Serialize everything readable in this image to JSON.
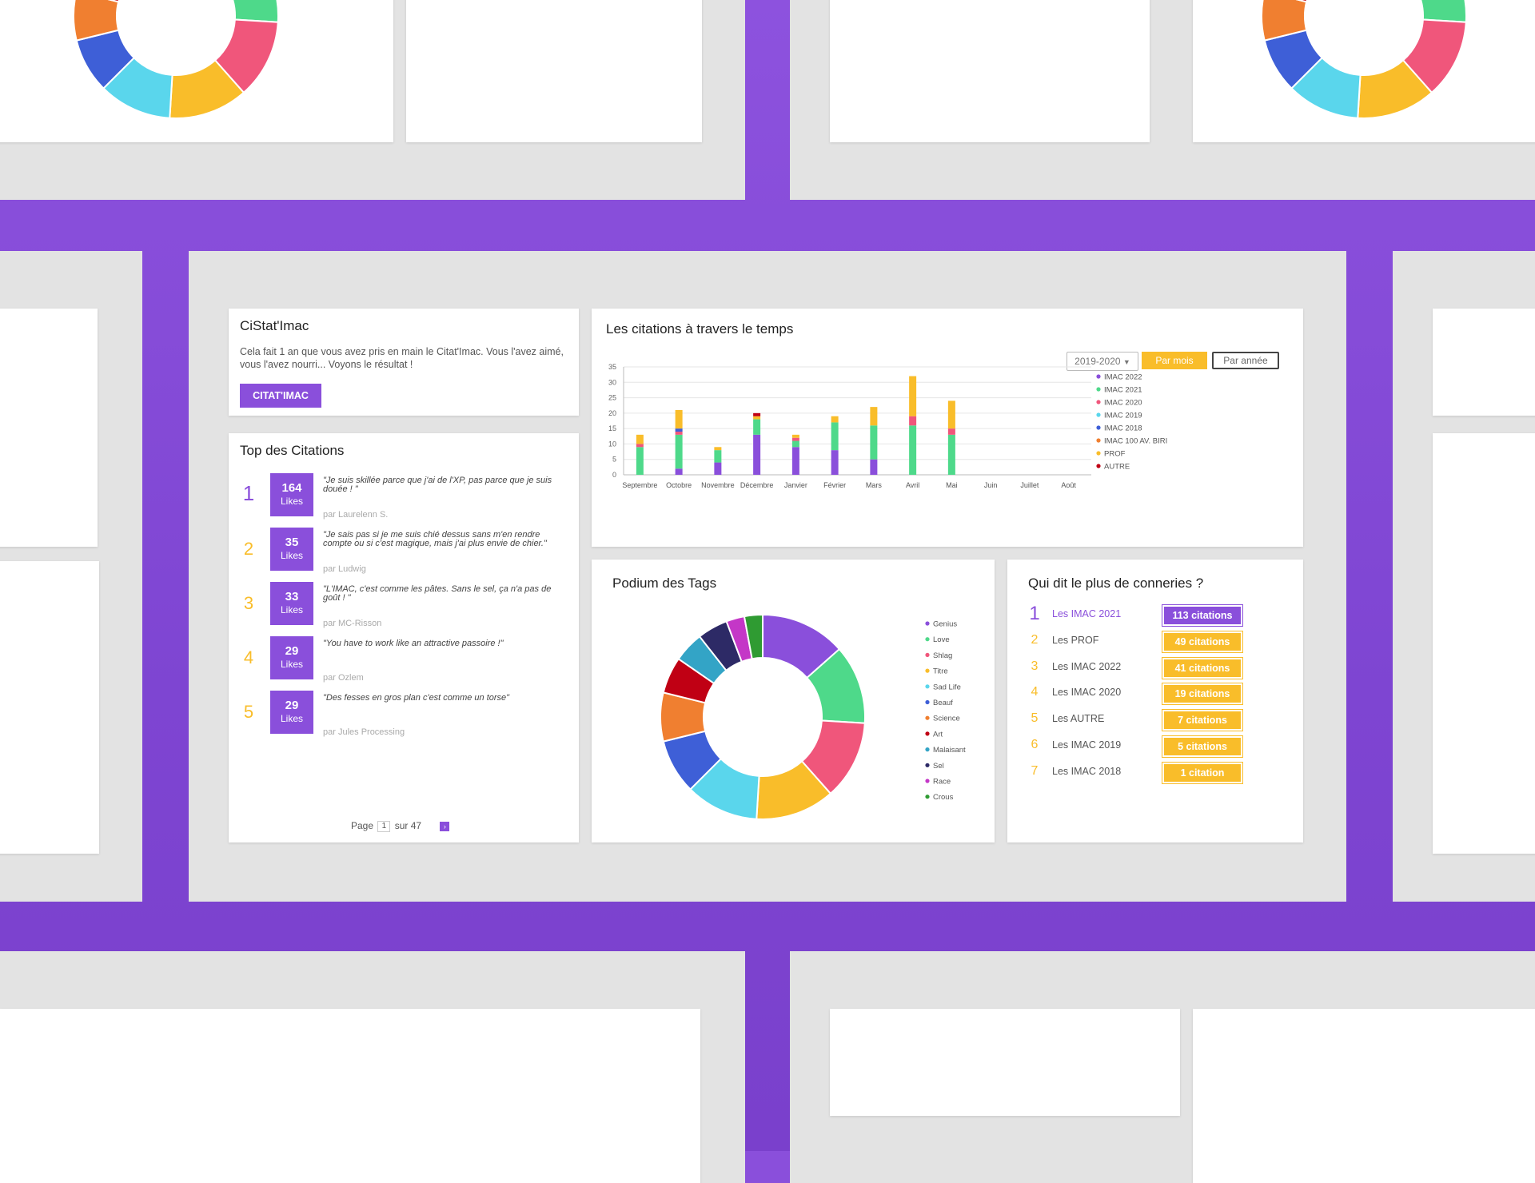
{
  "colors": {
    "purple": "#8a4fdb",
    "yellow": "#f9bd2a",
    "frame": "#e3e3e3"
  },
  "intro": {
    "title": "CiStat'Imac",
    "text": "Cela fait 1 an que vous avez pris en main le Citat'Imac. Vous l'avez aimé, vous l'avez nourri... Voyons le résultat !",
    "button": "CITAT'IMAC"
  },
  "quotes": {
    "title": "Top des Citations",
    "likes_label": "Likes",
    "items": [
      {
        "rank": "1",
        "likes": "164",
        "text": "\"Je suis skillée parce que j'ai de l'XP, pas parce que je suis douée ! \"",
        "author": "par Laurelenn S."
      },
      {
        "rank": "2",
        "likes": "35",
        "text": "\"Je sais pas si je me suis chié dessus sans m'en rendre compte ou si c'est magique, mais j'ai plus envie de chier.\"",
        "author": "par Ludwig"
      },
      {
        "rank": "3",
        "likes": "33",
        "text": "\"L'IMAC, c'est comme les pâtes. Sans le sel, ça n'a pas de goût ! \"",
        "author": "par MC-Risson"
      },
      {
        "rank": "4",
        "likes": "29",
        "text": "\"You have to work like an attractive passoire !\"",
        "author": "par Ozlem"
      },
      {
        "rank": "5",
        "likes": "29",
        "text": "\"Des fesses en gros plan c'est comme un torse\"",
        "author": "par Jules Processing"
      }
    ],
    "pager": {
      "page_label": "Page",
      "current": "1",
      "of_label": "sur 47",
      "next": "›"
    }
  },
  "time_chart": {
    "title": "Les citations à travers le temps",
    "year_select": "2019-2020",
    "by_month": "Par mois",
    "by_year": "Par année"
  },
  "tags": {
    "title": "Podium des Tags"
  },
  "ranking": {
    "title": "Qui dit le plus de conneries ?",
    "items": [
      {
        "rank": "1",
        "name": "Les IMAC 2021",
        "count": "113 citations"
      },
      {
        "rank": "2",
        "name": "Les PROF",
        "count": "49 citations"
      },
      {
        "rank": "3",
        "name": "Les IMAC 2022",
        "count": "41 citations"
      },
      {
        "rank": "4",
        "name": "Les IMAC 2020",
        "count": "19 citations"
      },
      {
        "rank": "5",
        "name": "Les AUTRE",
        "count": "7 citations"
      },
      {
        "rank": "6",
        "name": "Les IMAC 2019",
        "count": "5 citations"
      },
      {
        "rank": "7",
        "name": "Les IMAC 2018",
        "count": "1 citation"
      }
    ]
  },
  "chart_data": [
    {
      "type": "bar",
      "stacked": true,
      "title": "Les citations à travers le temps",
      "categories": [
        "Septembre",
        "Octobre",
        "Novembre",
        "Décembre",
        "Janvier",
        "Février",
        "Mars",
        "Avril",
        "Mai",
        "Juin",
        "Juillet",
        "Août"
      ],
      "ylim": [
        0,
        35
      ],
      "yticks": [
        0,
        5,
        10,
        15,
        20,
        25,
        30,
        35
      ],
      "grid": true,
      "legend_position": "right",
      "series": [
        {
          "name": "IMAC 2022",
          "color": "#8a4fdb",
          "values": [
            0,
            2,
            4,
            13,
            9,
            8,
            5,
            0,
            0,
            0,
            0,
            0
          ]
        },
        {
          "name": "IMAC 2021",
          "color": "#4ed98a",
          "values": [
            9,
            11,
            4,
            5,
            2,
            9,
            11,
            16,
            13,
            0,
            0,
            0
          ]
        },
        {
          "name": "IMAC 2020",
          "color": "#f0567b",
          "values": [
            1,
            1,
            0,
            0,
            1,
            0,
            0,
            3,
            2,
            0,
            0,
            0
          ]
        },
        {
          "name": "IMAC 2019",
          "color": "#5ad6ec",
          "values": [
            0,
            0,
            0,
            0,
            0,
            0,
            0,
            0,
            0,
            0,
            0,
            0
          ]
        },
        {
          "name": "IMAC 2018",
          "color": "#3e5fd7",
          "values": [
            0,
            1,
            0,
            0,
            0,
            0,
            0,
            0,
            0,
            0,
            0,
            0
          ]
        },
        {
          "name": "IMAC 100 AV. BIRI",
          "color": "#f07f30",
          "values": [
            0,
            0,
            0,
            0,
            0,
            0,
            0,
            0,
            0,
            0,
            0,
            0
          ]
        },
        {
          "name": "PROF",
          "color": "#f9bd2a",
          "values": [
            3,
            6,
            1,
            1,
            1,
            2,
            6,
            13,
            9,
            0,
            0,
            0
          ]
        },
        {
          "name": "AUTRE",
          "color": "#c00014",
          "values": [
            0,
            0,
            0,
            1,
            0,
            0,
            0,
            0,
            0,
            0,
            0,
            0
          ]
        }
      ]
    },
    {
      "type": "pie",
      "donut": true,
      "title": "Podium des Tags",
      "legend_position": "right",
      "labels": [
        "Genius",
        "Love",
        "Shlag",
        "Titre",
        "Sad Life",
        "Beauf",
        "Science",
        "Art",
        "Malaisant",
        "Sel",
        "Race",
        "Crous"
      ],
      "colors": [
        "#8a4fdb",
        "#4ed98a",
        "#f0567b",
        "#f9bd2a",
        "#5ad6ec",
        "#3e5fd7",
        "#f07f30",
        "#c00014",
        "#33a4c6",
        "#2d2a66",
        "#c437c7",
        "#2f9b32"
      ],
      "values": [
        14,
        13,
        13,
        13,
        12,
        9,
        8,
        6,
        5,
        5,
        3,
        3
      ]
    }
  ]
}
